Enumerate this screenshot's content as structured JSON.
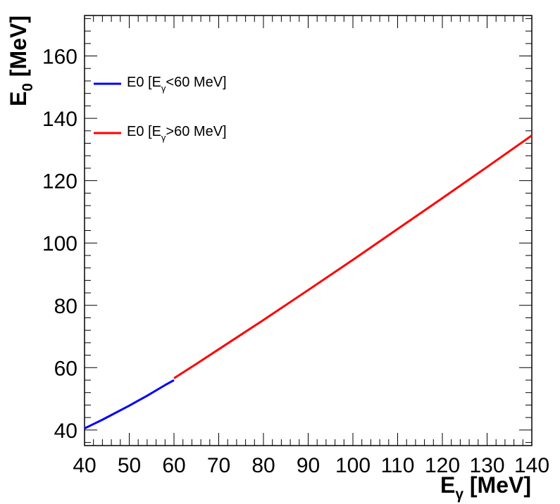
{
  "chart_data": {
    "type": "line",
    "title": "",
    "xlabel": {
      "main": "E",
      "sub": "γ",
      "unit": " [MeV]"
    },
    "ylabel": {
      "main": "E",
      "sub": "0",
      "unit": " [MeV]"
    },
    "xlim": [
      40,
      140
    ],
    "ylim": [
      35,
      173
    ],
    "xticks": [
      40,
      50,
      60,
      70,
      80,
      90,
      100,
      110,
      120,
      130,
      140
    ],
    "yticks": [
      40,
      60,
      80,
      100,
      120,
      140,
      160
    ],
    "grid": false,
    "legend_position": "top-left",
    "series": [
      {
        "label": {
          "main": "E0 [E",
          "sub": "γ",
          "rest": "<60 MeV]"
        },
        "color": "#0000ff",
        "x": [
          40,
          42,
          44,
          46,
          48,
          50,
          52,
          54,
          56,
          58,
          60
        ],
        "y": [
          40.5,
          41.9,
          43.3,
          44.8,
          46.3,
          47.8,
          49.4,
          51.0,
          52.7,
          54.4,
          56.0
        ]
      },
      {
        "label": {
          "main": "E0 [E",
          "sub": "γ",
          "rest": ">60 MeV]"
        },
        "color": "#ff0000",
        "x": [
          60,
          65,
          70,
          80,
          90,
          100,
          110,
          120,
          130,
          140
        ],
        "y": [
          56.6,
          61.2,
          65.9,
          75.3,
          84.9,
          94.6,
          104.5,
          114.4,
          124.4,
          134.5
        ]
      }
    ]
  }
}
